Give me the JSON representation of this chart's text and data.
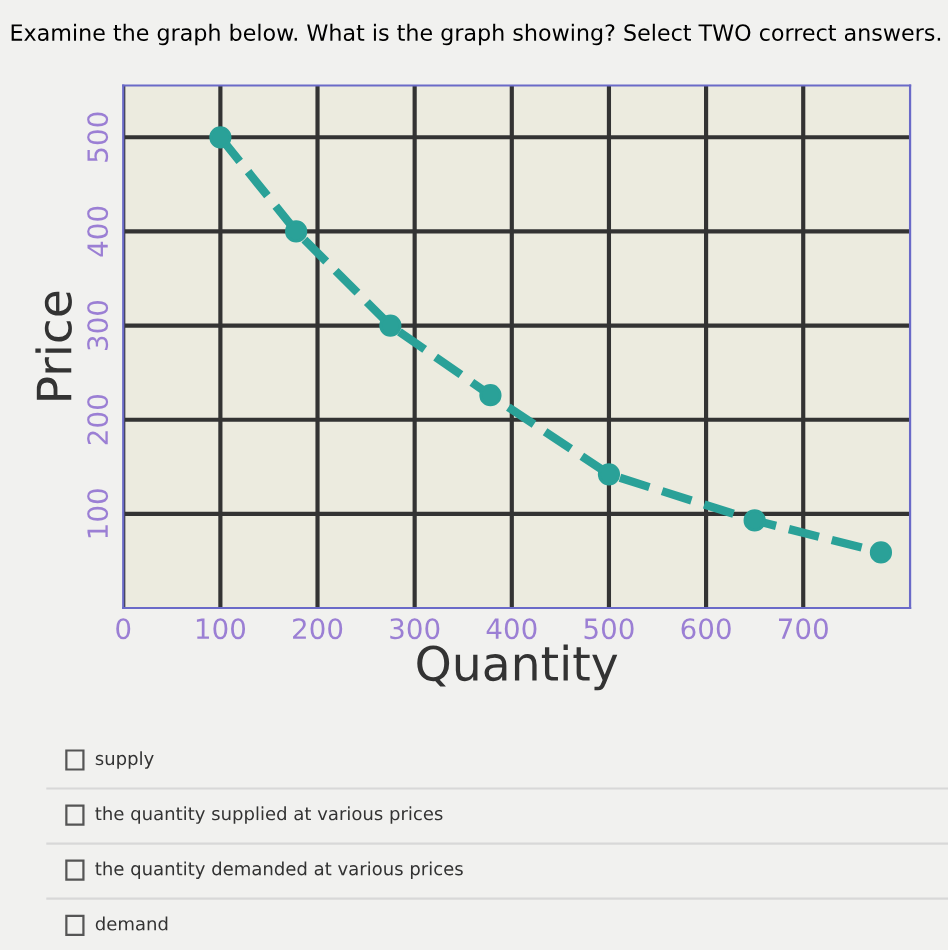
{
  "chart_data": {
    "type": "line",
    "title": "Examine the graph below. What is the graph showing? Select TWO correct answers.",
    "xlabel": "Quantity",
    "ylabel": "Price",
    "x": [
      100,
      178,
      275,
      378,
      500,
      650,
      780
    ],
    "series": [
      {
        "color": "#2aa198",
        "values": [
          500,
          400,
          300,
          226,
          142,
          93,
          59
        ]
      }
    ],
    "xlim": [
      0,
      810
    ],
    "ylim": [
      0,
      555
    ],
    "xticks": [
      0,
      100,
      200,
      300,
      400,
      500,
      600,
      700
    ],
    "yticks": [
      100,
      200,
      300,
      400,
      500
    ],
    "grid": true,
    "marker": "circle",
    "line_style": "dashed",
    "annotations": [
      "supply",
      "the quantity supplied at various prices",
      "the quantity demanded at various prices",
      "demand"
    ]
  }
}
